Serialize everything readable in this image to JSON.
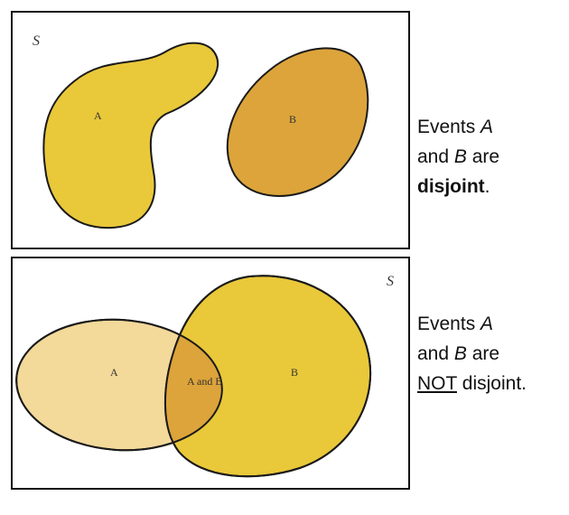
{
  "top_diagram": {
    "universe_label": "S",
    "set_a_label": "A",
    "set_b_label": "B",
    "colors": {
      "set_a": "#e9c83a",
      "set_b": "#dca43a",
      "outline": "#1a1a1a"
    }
  },
  "top_caption": {
    "line1_text": "Events ",
    "line1_var": "A",
    "line2_prefix": "and ",
    "line2_var": "B",
    "line2_suffix": " are",
    "line3_bold": "disjoint",
    "line3_suffix": "."
  },
  "bottom_diagram": {
    "universe_label": "S",
    "set_a_label": "A",
    "set_b_label": "B",
    "intersection_label": "A and B",
    "colors": {
      "set_a": "#f3d99a",
      "set_b": "#e9c83a",
      "intersection": "#dca43a",
      "outline": "#1a1a1a"
    }
  },
  "bottom_caption": {
    "line1_text": "Events ",
    "line1_var": "A",
    "line2_prefix": "and ",
    "line2_var": "B",
    "line2_suffix": " are",
    "line3_underline": "NOT",
    "line3_suffix": " disjoint."
  }
}
